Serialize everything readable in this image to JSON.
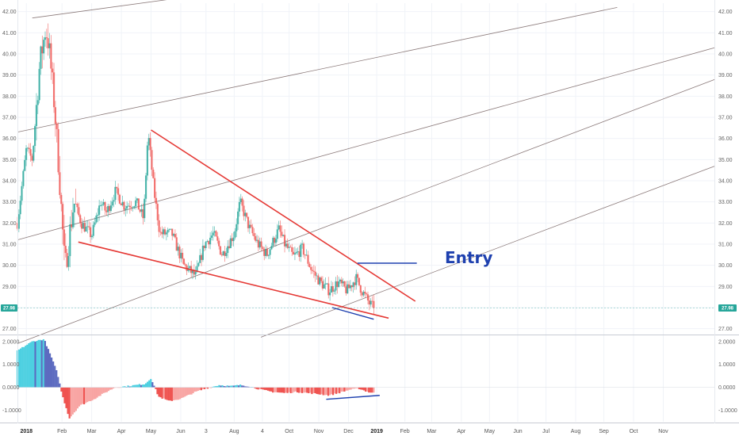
{
  "chart_data": {
    "type": "candlestick",
    "colors": {
      "up": "#26a69a",
      "down": "#ef5350",
      "wedge": "#e53935",
      "entry": "#1e40af",
      "channel": "#8c7b7b",
      "hist_up": "#4dd0e1",
      "hist_down": "#ef5350",
      "hist_dark": "#5c6bc0",
      "price_tag": "#26a69a"
    },
    "price_axis": {
      "ylim": [
        26.8,
        42.4
      ],
      "ticks": [
        "27.00",
        "28.00",
        "29.00",
        "30.00",
        "31.00",
        "32.00",
        "33.00",
        "34.00",
        "35.00",
        "36.00",
        "37.00",
        "38.00",
        "39.00",
        "40.00",
        "41.00",
        "42.00"
      ],
      "last_price": 27.98,
      "last_price_label": "27.98"
    },
    "indicator_axis": {
      "ylim": [
        -1.5,
        2.2
      ],
      "ticks": [
        {
          "v": 2.0,
          "label": "2.0000"
        },
        {
          "v": 1.0,
          "label": "1.0000"
        },
        {
          "v": 0.0,
          "label": "0.0000"
        },
        {
          "v": -1.0,
          "label": "-1.0000"
        }
      ]
    },
    "time_axis": {
      "xlim": [
        0,
        23.5
      ],
      "ticks": [
        {
          "m": 0.3,
          "label": "2018",
          "bold": true
        },
        {
          "m": 1.5,
          "label": "Feb",
          "bold": false
        },
        {
          "m": 2.5,
          "label": "Mar",
          "bold": false
        },
        {
          "m": 3.5,
          "label": "Apr",
          "bold": false
        },
        {
          "m": 4.5,
          "label": "May",
          "bold": false
        },
        {
          "m": 5.5,
          "label": "Jun",
          "bold": false
        },
        {
          "m": 6.35,
          "label": "3",
          "bold": false
        },
        {
          "m": 7.3,
          "label": "Aug",
          "bold": false
        },
        {
          "m": 8.25,
          "label": "4",
          "bold": false
        },
        {
          "m": 9.15,
          "label": "Oct",
          "bold": false
        },
        {
          "m": 10.15,
          "label": "Nov",
          "bold": false
        },
        {
          "m": 11.15,
          "label": "Dec",
          "bold": false
        },
        {
          "m": 12.1,
          "label": "2019",
          "bold": true
        },
        {
          "m": 13.05,
          "label": "Feb",
          "bold": false
        },
        {
          "m": 13.95,
          "label": "Mar",
          "bold": false
        },
        {
          "m": 14.95,
          "label": "Apr",
          "bold": false
        },
        {
          "m": 15.9,
          "label": "May",
          "bold": false
        },
        {
          "m": 16.85,
          "label": "Jun",
          "bold": false
        },
        {
          "m": 17.8,
          "label": "Jul",
          "bold": false
        },
        {
          "m": 18.8,
          "label": "Aug",
          "bold": false
        },
        {
          "m": 19.75,
          "label": "Sep",
          "bold": false
        },
        {
          "m": 20.75,
          "label": "Oct",
          "bold": false
        },
        {
          "m": 21.75,
          "label": "Nov",
          "bold": false
        }
      ]
    },
    "price_anchors": [
      [
        0.0,
        32.0
      ],
      [
        0.3,
        35.5
      ],
      [
        0.5,
        35.0
      ],
      [
        0.75,
        39.5
      ],
      [
        0.95,
        41.2
      ],
      [
        1.05,
        40.5
      ],
      [
        1.25,
        37.5
      ],
      [
        1.4,
        34.5
      ],
      [
        1.6,
        29.8
      ],
      [
        1.9,
        33.0
      ],
      [
        2.15,
        32.0
      ],
      [
        2.5,
        31.4
      ],
      [
        2.8,
        33.0
      ],
      [
        3.0,
        32.5
      ],
      [
        3.3,
        33.5
      ],
      [
        3.6,
        32.8
      ],
      [
        4.0,
        33.0
      ],
      [
        4.25,
        32.2
      ],
      [
        4.4,
        36.3
      ],
      [
        4.6,
        33.5
      ],
      [
        4.8,
        31.5
      ],
      [
        5.2,
        31.5
      ],
      [
        5.6,
        30.0
      ],
      [
        6.0,
        29.5
      ],
      [
        6.3,
        31.0
      ],
      [
        6.6,
        31.5
      ],
      [
        6.9,
        30.5
      ],
      [
        7.3,
        31.5
      ],
      [
        7.5,
        33.0
      ],
      [
        7.8,
        31.8
      ],
      [
        8.1,
        31.0
      ],
      [
        8.4,
        30.5
      ],
      [
        8.8,
        31.7
      ],
      [
        9.0,
        31.0
      ],
      [
        9.3,
        30.4
      ],
      [
        9.6,
        30.8
      ],
      [
        9.9,
        29.8
      ],
      [
        10.2,
        29.2
      ],
      [
        10.5,
        28.8
      ],
      [
        10.8,
        29.2
      ],
      [
        11.1,
        28.8
      ],
      [
        11.4,
        29.4
      ],
      [
        11.6,
        28.8
      ],
      [
        11.85,
        28.2
      ],
      [
        12.0,
        27.98
      ]
    ],
    "hist_anchors": [
      [
        0.0,
        1.6
      ],
      [
        0.5,
        2.0
      ],
      [
        0.9,
        2.1
      ],
      [
        1.15,
        1.3
      ],
      [
        1.35,
        0.6
      ],
      [
        1.5,
        -0.3
      ],
      [
        1.75,
        -1.35
      ],
      [
        2.1,
        -0.8
      ],
      [
        2.6,
        -0.5
      ],
      [
        3.0,
        -0.2
      ],
      [
        3.3,
        0.0
      ],
      [
        3.7,
        0.05
      ],
      [
        4.0,
        0.1
      ],
      [
        4.3,
        0.15
      ],
      [
        4.5,
        0.4
      ],
      [
        4.75,
        -0.4
      ],
      [
        5.1,
        -0.6
      ],
      [
        5.5,
        -0.5
      ],
      [
        6.0,
        -0.2
      ],
      [
        6.35,
        -0.05
      ],
      [
        6.8,
        0.1
      ],
      [
        7.2,
        0.05
      ],
      [
        7.5,
        0.1
      ],
      [
        7.8,
        0.05
      ],
      [
        8.2,
        -0.1
      ],
      [
        8.6,
        -0.2
      ],
      [
        9.0,
        -0.25
      ],
      [
        9.4,
        -0.2
      ],
      [
        9.8,
        -0.25
      ],
      [
        10.2,
        -0.3
      ],
      [
        10.5,
        -0.35
      ],
      [
        10.8,
        -0.25
      ],
      [
        11.2,
        -0.1
      ],
      [
        11.5,
        -0.05
      ],
      [
        11.8,
        -0.2
      ],
      [
        12.0,
        -0.25
      ]
    ],
    "annotations": {
      "entry_label": "Entry",
      "wedge_upper": [
        [
          4.5,
          36.4
        ],
        [
          13.4,
          28.3
        ]
      ],
      "wedge_lower": [
        [
          2.05,
          31.1
        ],
        [
          12.5,
          27.5
        ]
      ],
      "support_short": [
        [
          10.6,
          28.0
        ],
        [
          12.0,
          27.45
        ]
      ],
      "entry_line": [
        [
          11.45,
          30.1
        ],
        [
          13.45,
          30.1
        ]
      ],
      "indicator_trend": [
        [
          10.4,
          -0.52
        ],
        [
          12.2,
          -0.35
        ]
      ],
      "channel": [
        [
          [
            0.5,
            41.7
          ],
          [
            11.5,
            43.8
          ]
        ],
        [
          [
            0.0,
            36.3
          ],
          [
            20.2,
            42.2
          ]
        ],
        [
          [
            0.0,
            31.2
          ],
          [
            23.5,
            40.3
          ]
        ],
        [
          [
            0.0,
            26.3
          ],
          [
            23.5,
            38.8
          ]
        ],
        [
          [
            8.2,
            26.6
          ],
          [
            23.5,
            34.7
          ]
        ]
      ]
    }
  }
}
